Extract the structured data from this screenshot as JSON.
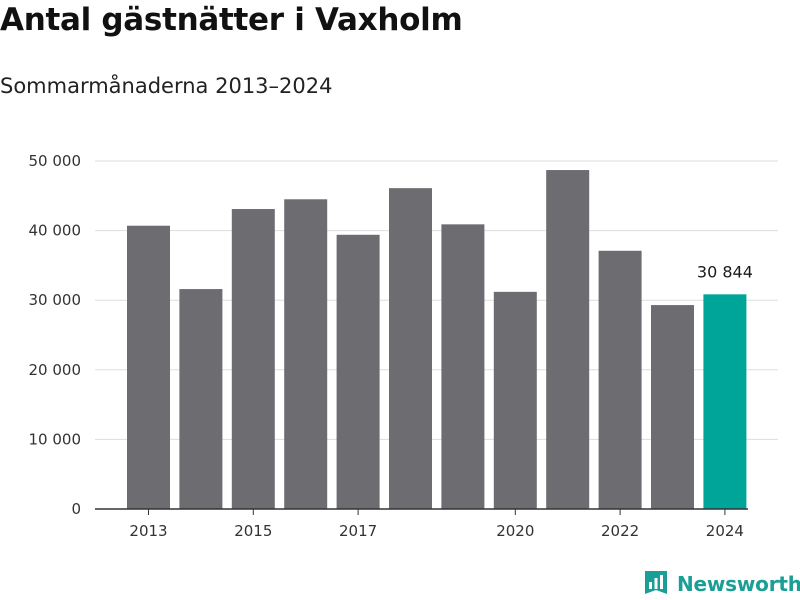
{
  "header": {
    "title": "Antal gästnätter i Vaxholm",
    "subtitle": "Sommarmånaderna 2013–2024"
  },
  "logo": {
    "text": "Newsworthy",
    "icon": "bar-chart-flag-icon",
    "color": "#1a9e96"
  },
  "colors": {
    "bar": "#6d6c70",
    "highlight": "#00a59a",
    "grid": "#dddddd",
    "axis": "#333333"
  },
  "chart_data": {
    "type": "bar",
    "title": "Antal gästnätter i Vaxholm",
    "subtitle": "Sommarmånaderna 2013–2024",
    "categories": [
      "2013",
      "2014",
      "2015",
      "2016",
      "2017",
      "2018",
      "2019",
      "2020",
      "2021",
      "2022",
      "2023",
      "2024"
    ],
    "values": [
      40700,
      31600,
      43100,
      44500,
      39400,
      46100,
      40900,
      31200,
      48700,
      37100,
      29300,
      30844
    ],
    "highlight_index": 11,
    "data_labels": [
      {
        "index": 11,
        "text": "30 844"
      }
    ],
    "x_tick_labels": [
      {
        "index": 0,
        "text": "2013"
      },
      {
        "index": 2,
        "text": "2015"
      },
      {
        "index": 4,
        "text": "2017"
      },
      {
        "index": 7,
        "text": "2020"
      },
      {
        "index": 9,
        "text": "2022"
      },
      {
        "index": 11,
        "text": "2024"
      }
    ],
    "y_ticks": [
      {
        "value": 0,
        "text": "0"
      },
      {
        "value": 10000,
        "text": "10 000"
      },
      {
        "value": 20000,
        "text": "20 000"
      },
      {
        "value": 30000,
        "text": "30 000"
      },
      {
        "value": 40000,
        "text": "40 000"
      },
      {
        "value": 50000,
        "text": "50 000"
      }
    ],
    "ylim": [
      0,
      50000
    ],
    "grid": true,
    "legend": "none",
    "xlabel": "",
    "ylabel": ""
  }
}
